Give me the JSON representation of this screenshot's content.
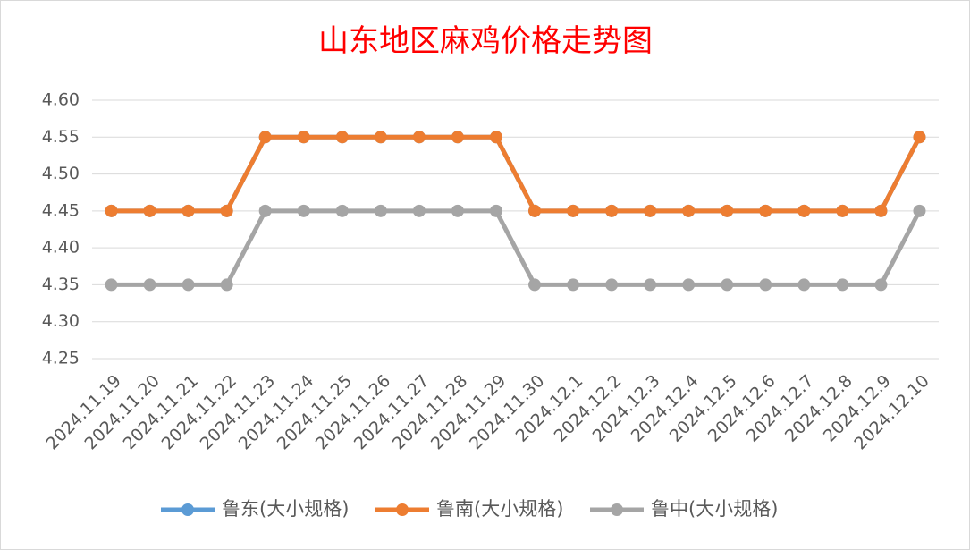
{
  "chart_data": {
    "type": "line",
    "title": "山东地区麻鸡价格走势图",
    "categories": [
      "2024.11.19",
      "2024.11.20",
      "2024.11.21",
      "2024.11.22",
      "2024.11.23",
      "2024.11.24",
      "2024.11.25",
      "2024.11.26",
      "2024.11.27",
      "2024.11.28",
      "2024.11.29",
      "2024.11.30",
      "2024.12.1",
      "2024.12.2",
      "2024.12.3",
      "2024.12.4",
      "2024.12.5",
      "2024.12.6",
      "2024.12.7",
      "2024.12.8",
      "2024.12.9",
      "2024.12.10"
    ],
    "series": [
      {
        "name": "鲁东(大小规格)",
        "color": "#5b9bd5",
        "values": [
          4.45,
          4.45,
          4.45,
          4.45,
          4.55,
          4.55,
          4.55,
          4.55,
          4.55,
          4.55,
          4.55,
          4.45,
          4.45,
          4.45,
          4.45,
          4.45,
          4.45,
          4.45,
          4.45,
          4.45,
          4.45,
          4.55
        ]
      },
      {
        "name": "鲁南(大小规格)",
        "color": "#ed7d31",
        "values": [
          4.45,
          4.45,
          4.45,
          4.45,
          4.55,
          4.55,
          4.55,
          4.55,
          4.55,
          4.55,
          4.55,
          4.45,
          4.45,
          4.45,
          4.45,
          4.45,
          4.45,
          4.45,
          4.45,
          4.45,
          4.45,
          4.55
        ]
      },
      {
        "name": "鲁中(大小规格)",
        "color": "#a5a5a5",
        "values": [
          4.35,
          4.35,
          4.35,
          4.35,
          4.45,
          4.45,
          4.45,
          4.45,
          4.45,
          4.45,
          4.45,
          4.35,
          4.35,
          4.35,
          4.35,
          4.35,
          4.35,
          4.35,
          4.35,
          4.35,
          4.35,
          4.45
        ]
      }
    ],
    "ylim": [
      4.25,
      4.6
    ],
    "yticks": [
      {
        "value": 4.25,
        "label": "4.25"
      },
      {
        "value": 4.3,
        "label": "4.30"
      },
      {
        "value": 4.35,
        "label": "4.35"
      },
      {
        "value": 4.4,
        "label": "4.40"
      },
      {
        "value": 4.45,
        "label": "4.45"
      },
      {
        "value": 4.5,
        "label": "4.50"
      },
      {
        "value": 4.55,
        "label": "4.55"
      },
      {
        "value": 4.6,
        "label": "4.60"
      }
    ],
    "grid": true,
    "legend": "bottom",
    "title_color": "#ff0000"
  }
}
